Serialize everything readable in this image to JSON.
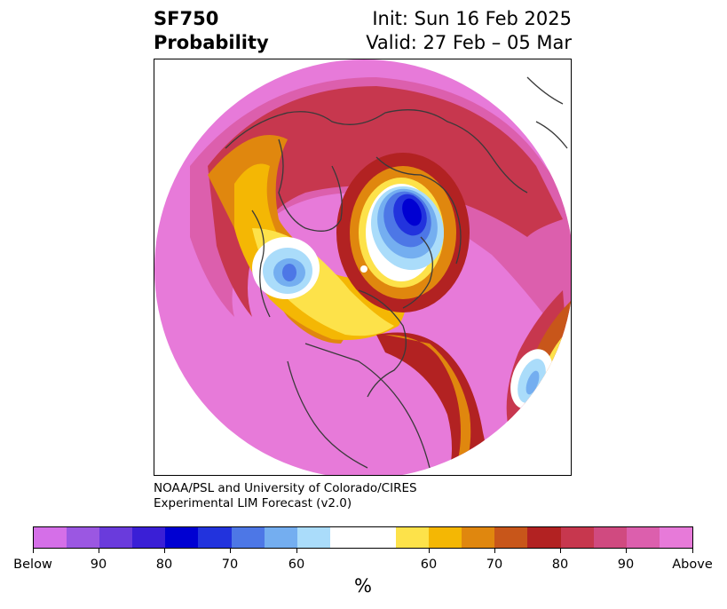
{
  "header": {
    "title_line1": "SF750",
    "title_line2": "Probability",
    "init": "Init: Sun 16 Feb 2025",
    "valid": "Valid: 27 Feb – 05 Mar"
  },
  "credit": {
    "line1": "NOAA/PSL and University of Colorado/CIRES",
    "line2": "Experimental LIM Forecast (v2.0)"
  },
  "colorbar": {
    "colors": [
      "#d56fe8",
      "#9b57e2",
      "#6a3bdc",
      "#3a1fd6",
      "#0000d2",
      "#2233dd",
      "#4d77e6",
      "#74aef0",
      "#aadcfa",
      "#ffffff",
      "#ffffff",
      "#fde24a",
      "#f4b704",
      "#e0870e",
      "#c8561a",
      "#b22222",
      "#c7374e",
      "#d04a80",
      "#dc5fad",
      "#e77ad9"
    ],
    "tick_labels": [
      "Below",
      "90",
      "80",
      "70",
      "60",
      "60",
      "70",
      "80",
      "90",
      "Above"
    ],
    "unit": "%"
  },
  "map": {
    "colors": {
      "above": "#e77ad9",
      "above_90": "#dc5fad",
      "above_80": "#c7374e",
      "above_75": "#b22222",
      "above_70": "#c8561a",
      "above_65": "#e0870e",
      "above_60": "#f4b704",
      "above_55": "#fde24a",
      "neutral": "#ffffff",
      "below_60": "#aadcfa",
      "below_65": "#74aef0",
      "below_70": "#4d77e6",
      "below_75": "#2233dd",
      "below_80": "#0000d2",
      "coast": "#3a3a3a"
    }
  }
}
